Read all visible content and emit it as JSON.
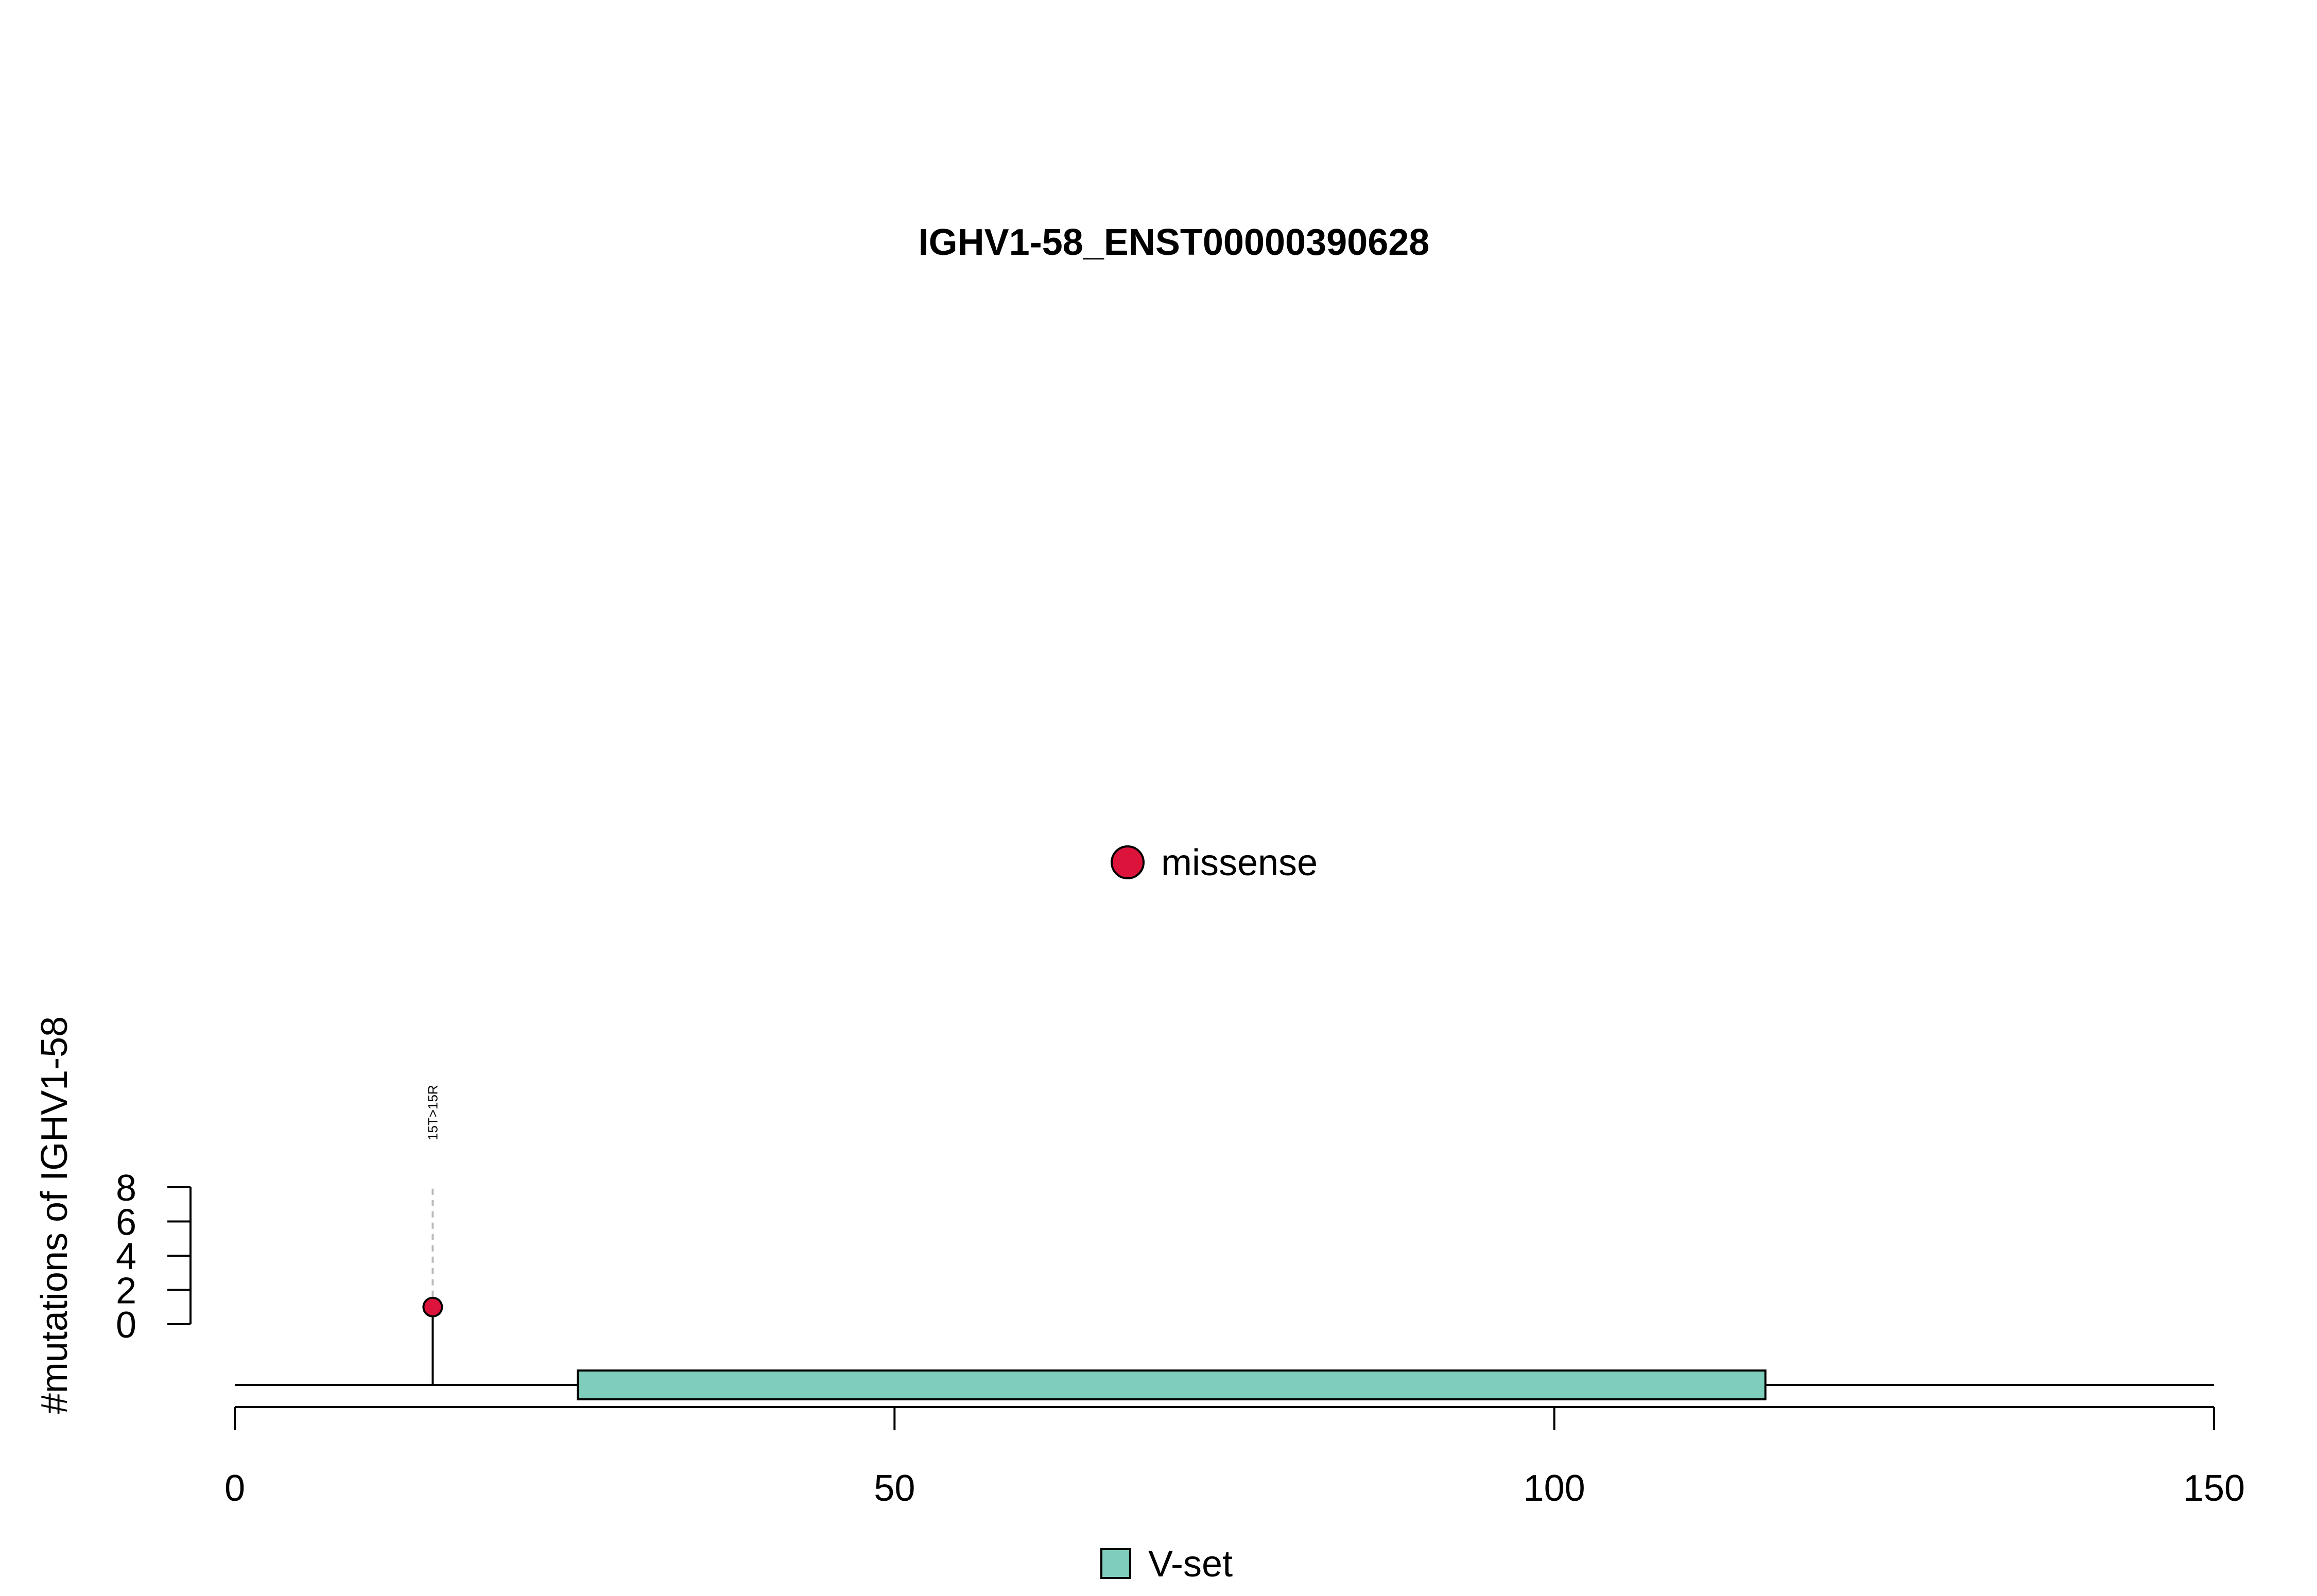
{
  "chart_data": {
    "type": "lollipop",
    "title": "IGHV1-58_ENST00000390628",
    "ylabel": "#mutations of IGHV1-58",
    "xlabel": "",
    "xlim": [
      0,
      150
    ],
    "xticks": [
      0,
      50,
      100,
      150
    ],
    "ylim": [
      0,
      8
    ],
    "yticks": [
      0,
      2,
      4,
      6,
      8
    ],
    "protein_length": 150,
    "domains": [
      {
        "name": "V-set",
        "start": 26,
        "end": 116,
        "color": "#7FCDBB"
      }
    ],
    "mutations": [
      {
        "position": 15,
        "label": "15T>15R",
        "count": 1,
        "type": "missense",
        "color": "#DC143C"
      }
    ],
    "mutation_legend": [
      {
        "type": "missense",
        "color": "#DC143C"
      }
    ],
    "domain_legend": [
      {
        "name": "V-set",
        "color": "#7FCDBB"
      }
    ]
  }
}
